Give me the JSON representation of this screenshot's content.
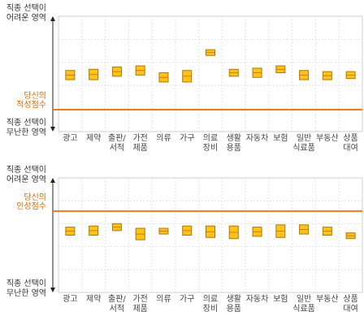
{
  "colors": {
    "grid": "#e3e3e3",
    "frame": "#d0d0d0",
    "score_line": "#f07a16",
    "score_text": "#d96a00",
    "box_fill": "#ffc21a",
    "box_stroke": "#b07800",
    "axis": "#222222"
  },
  "chart_data": [
    {
      "type": "bar",
      "title": "",
      "y_top_label": [
        "직종 선택이",
        "어려운 영역"
      ],
      "y_bottom_label": [
        "직종 선택이",
        "무난한 영역"
      ],
      "score_label": [
        "당신의",
        "적성점수"
      ],
      "score_value": 0.19,
      "ylim": [
        0,
        1
      ],
      "grid": true,
      "categories": [
        [
          "광고"
        ],
        [
          "제약"
        ],
        [
          "출판/",
          "서적"
        ],
        [
          "가전",
          "제품"
        ],
        [
          "의류"
        ],
        [
          "가구"
        ],
        [
          "의료",
          "장비"
        ],
        [
          "생활",
          "용품"
        ],
        [
          "자동차"
        ],
        [
          "보험"
        ],
        [
          "일반",
          "식료품"
        ],
        [
          "부동산"
        ],
        [
          "상품",
          "대여"
        ]
      ],
      "ranges": [
        [
          0.45,
          0.53
        ],
        [
          0.45,
          0.54
        ],
        [
          0.48,
          0.56
        ],
        [
          0.49,
          0.57
        ],
        [
          0.43,
          0.51
        ],
        [
          0.43,
          0.53
        ],
        [
          0.66,
          0.71
        ],
        [
          0.48,
          0.54
        ],
        [
          0.47,
          0.55
        ],
        [
          0.51,
          0.57
        ],
        [
          0.45,
          0.53
        ],
        [
          0.45,
          0.52
        ],
        [
          0.46,
          0.52
        ]
      ]
    },
    {
      "type": "bar",
      "title": "",
      "y_top_label": [
        "직종 선택이",
        "어려운 영역"
      ],
      "y_bottom_label": [
        "직종 선택이",
        "무난한 영역"
      ],
      "score_label": [
        "당신의",
        "인성점수"
      ],
      "score_value": 0.71,
      "ylim": [
        0,
        1
      ],
      "grid": true,
      "categories": [
        [
          "광고"
        ],
        [
          "제약"
        ],
        [
          "출판/",
          "서적"
        ],
        [
          "가전",
          "제품"
        ],
        [
          "의류"
        ],
        [
          "가구"
        ],
        [
          "의료",
          "장비"
        ],
        [
          "생활",
          "용품"
        ],
        [
          "자동차"
        ],
        [
          "보험"
        ],
        [
          "일반",
          "식료품"
        ],
        [
          "부동산"
        ],
        [
          "상품",
          "대여"
        ]
      ],
      "ranges": [
        [
          0.5,
          0.57
        ],
        [
          0.5,
          0.58
        ],
        [
          0.54,
          0.6
        ],
        [
          0.46,
          0.56
        ],
        [
          0.51,
          0.56
        ],
        [
          0.5,
          0.58
        ],
        [
          0.48,
          0.58
        ],
        [
          0.47,
          0.58
        ],
        [
          0.49,
          0.57
        ],
        [
          0.48,
          0.59
        ],
        [
          0.51,
          0.59
        ],
        [
          0.5,
          0.57
        ],
        [
          0.47,
          0.52
        ]
      ]
    }
  ]
}
